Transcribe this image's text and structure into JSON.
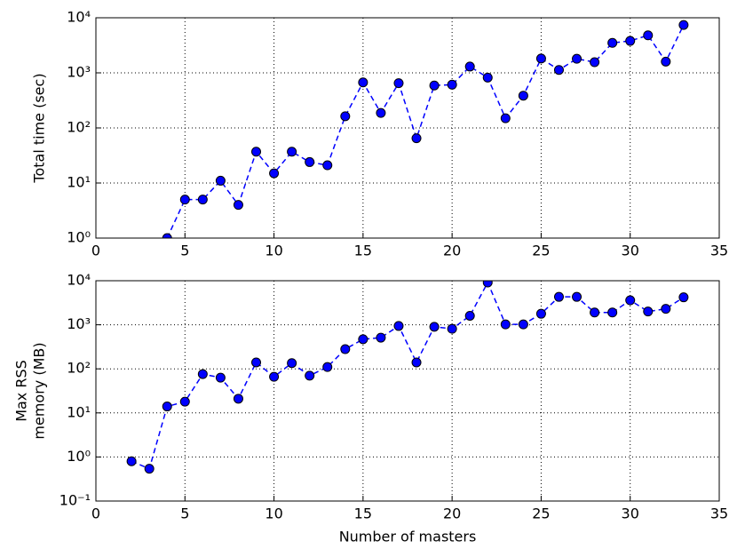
{
  "chart_data": [
    {
      "type": "line",
      "ylabel": [
        "Total time (sec)"
      ],
      "log_y": true,
      "grid": true,
      "linestyle": "dashed",
      "marker": "circle",
      "color": "#0000ff",
      "x": [
        4,
        5,
        6,
        7,
        8,
        9,
        10,
        11,
        12,
        13,
        14,
        15,
        16,
        17,
        18,
        19,
        20,
        21,
        22,
        23,
        24,
        25,
        26,
        27,
        28,
        29,
        30,
        31,
        32,
        33
      ],
      "values": [
        1,
        5,
        5,
        11,
        4,
        37,
        15,
        37,
        24,
        21,
        163,
        670,
        187,
        650,
        65,
        590,
        610,
        1300,
        820,
        150,
        385,
        1820,
        1130,
        1800,
        1560,
        3500,
        3800,
        4800,
        1600,
        7400
      ],
      "xlim": [
        0,
        35
      ],
      "xticks": [
        0,
        5,
        10,
        15,
        20,
        25,
        30,
        35
      ],
      "ylim": [
        1,
        10000
      ],
      "yticks": [
        {
          "value": 1,
          "label": "10⁰"
        },
        {
          "value": 10,
          "label": "10¹"
        },
        {
          "value": 100,
          "label": "10²"
        },
        {
          "value": 1000,
          "label": "10³"
        },
        {
          "value": 10000,
          "label": "10⁴"
        }
      ]
    },
    {
      "type": "line",
      "ylabel": [
        "Max RSS",
        "memory (MB)"
      ],
      "xlabel": "Number of masters",
      "log_y": true,
      "grid": true,
      "linestyle": "dashed",
      "marker": "circle",
      "color": "#0000ff",
      "x": [
        2,
        3,
        4,
        5,
        6,
        7,
        8,
        9,
        10,
        11,
        12,
        13,
        14,
        15,
        16,
        17,
        18,
        19,
        20,
        21,
        22,
        23,
        24,
        25,
        26,
        27,
        28,
        29,
        30,
        31,
        32,
        33
      ],
      "values": [
        0.8,
        0.54,
        14,
        18,
        76,
        63,
        21,
        140,
        66,
        135,
        70,
        110,
        280,
        470,
        510,
        940,
        140,
        900,
        810,
        1600,
        9100,
        1020,
        1020,
        1780,
        4300,
        4300,
        1900,
        1900,
        3600,
        2000,
        2300,
        4200
      ],
      "xlim": [
        0,
        35
      ],
      "xticks": [
        0,
        5,
        10,
        15,
        20,
        25,
        30,
        35
      ],
      "ylim": [
        0.1,
        10000
      ],
      "yticks": [
        {
          "value": 0.1,
          "label": "10⁻¹"
        },
        {
          "value": 1,
          "label": "10⁰"
        },
        {
          "value": 10,
          "label": "10¹"
        },
        {
          "value": 100,
          "label": "10²"
        },
        {
          "value": 1000,
          "label": "10³"
        },
        {
          "value": 10000,
          "label": "10⁴"
        }
      ]
    }
  ]
}
